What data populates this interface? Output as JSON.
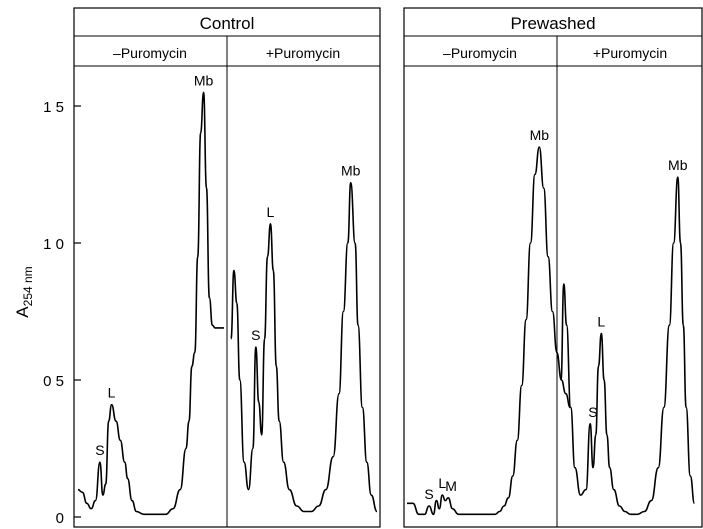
{
  "chart_data": {
    "type": "line",
    "ylabel": "A",
    "ylabel_sub": "254 nm",
    "ylim": [
      0,
      1.7
    ],
    "yticks": [
      {
        "value": 0,
        "label": "0"
      },
      {
        "value": 0.5,
        "label": "0 5"
      },
      {
        "value": 1.0,
        "label": "1 0"
      },
      {
        "value": 1.5,
        "label": "1 5"
      }
    ],
    "grid": false,
    "panels": [
      {
        "title": "Control",
        "subpanels": [
          {
            "label": "–Puromycin",
            "series": [
              {
                "x": [
                  0,
                  0.03,
                  0.06,
                  0.09,
                  0.12,
                  0.15,
                  0.17,
                  0.19,
                  0.21,
                  0.23,
                  0.26,
                  0.29,
                  0.32,
                  0.34,
                  0.37,
                  0.4,
                  0.45,
                  0.5,
                  0.55,
                  0.6,
                  0.65,
                  0.7,
                  0.74,
                  0.76,
                  0.78,
                  0.8,
                  0.82,
                  0.84,
                  0.86,
                  0.88,
                  0.9,
                  0.92,
                  0.94,
                  0.96,
                  1.0
                ],
                "y": [
                  0.1,
                  0.09,
                  0.05,
                  0.03,
                  0.06,
                  0.2,
                  0.08,
                  0.12,
                  0.35,
                  0.41,
                  0.35,
                  0.28,
                  0.2,
                  0.14,
                  0.06,
                  0.02,
                  0.01,
                  0.01,
                  0.01,
                  0.01,
                  0.03,
                  0.1,
                  0.25,
                  0.35,
                  0.55,
                  0.6,
                  0.95,
                  1.4,
                  1.55,
                  1.2,
                  0.8,
                  0.7,
                  0.69,
                  0.69,
                  0.69
                ]
              }
            ],
            "annotations": [
              {
                "text": "S",
                "x": 0.15,
                "y": 0.2
              },
              {
                "text": "L",
                "x": 0.23,
                "y": 0.41
              },
              {
                "text": "Mb",
                "x": 0.86,
                "y": 1.55
              }
            ]
          },
          {
            "label": "+Puromycin",
            "series": [
              {
                "x": [
                  0,
                  0.02,
                  0.04,
                  0.06,
                  0.09,
                  0.12,
                  0.15,
                  0.17,
                  0.19,
                  0.21,
                  0.23,
                  0.25,
                  0.27,
                  0.29,
                  0.31,
                  0.33,
                  0.36,
                  0.4,
                  0.45,
                  0.5,
                  0.55,
                  0.6,
                  0.65,
                  0.7,
                  0.74,
                  0.77,
                  0.8,
                  0.82,
                  0.85,
                  0.87,
                  0.9,
                  0.93,
                  0.96,
                  1.0
                ],
                "y": [
                  0.65,
                  0.9,
                  0.78,
                  0.5,
                  0.2,
                  0.1,
                  0.25,
                  0.62,
                  0.42,
                  0.3,
                  0.65,
                  0.95,
                  1.07,
                  0.9,
                  0.55,
                  0.35,
                  0.2,
                  0.1,
                  0.04,
                  0.02,
                  0.02,
                  0.04,
                  0.1,
                  0.22,
                  0.45,
                  0.75,
                  1.0,
                  1.22,
                  1.0,
                  0.7,
                  0.4,
                  0.2,
                  0.08,
                  0.02
                ]
              }
            ],
            "annotations": [
              {
                "text": "S",
                "x": 0.17,
                "y": 0.62
              },
              {
                "text": "L",
                "x": 0.27,
                "y": 1.07
              },
              {
                "text": "Mb",
                "x": 0.82,
                "y": 1.22
              }
            ]
          }
        ]
      },
      {
        "title": "Prewashed",
        "subpanels": [
          {
            "label": "–Puromycin",
            "series": [
              {
                "x": [
                  0,
                  0.04,
                  0.08,
                  0.12,
                  0.15,
                  0.18,
                  0.2,
                  0.22,
                  0.24,
                  0.26,
                  0.28,
                  0.31,
                  0.35,
                  0.4,
                  0.45,
                  0.5,
                  0.55,
                  0.6,
                  0.63,
                  0.66,
                  0.69,
                  0.72,
                  0.75,
                  0.78,
                  0.81,
                  0.84,
                  0.87,
                  0.9,
                  0.93,
                  0.96,
                  0.99,
                  1.02,
                  1.05,
                  1.08,
                  1.11
                ],
                "y": [
                  0.05,
                  0.05,
                  0.01,
                  0.01,
                  0.04,
                  0.01,
                  0.06,
                  0.03,
                  0.08,
                  0.06,
                  0.07,
                  0.03,
                  0.01,
                  0.01,
                  0.01,
                  0.01,
                  0.01,
                  0.01,
                  0.02,
                  0.04,
                  0.07,
                  0.15,
                  0.28,
                  0.48,
                  0.72,
                  1.0,
                  1.25,
                  1.35,
                  1.2,
                  0.95,
                  0.75,
                  0.6,
                  0.5,
                  0.45,
                  0.4
                ]
              }
            ],
            "annotations": [
              {
                "text": "S",
                "x": 0.15,
                "y": 0.04
              },
              {
                "text": "L",
                "x": 0.24,
                "y": 0.08
              },
              {
                "text": "M",
                "x": 0.3,
                "y": 0.07
              },
              {
                "text": "Mb",
                "x": 0.9,
                "y": 1.35
              }
            ]
          },
          {
            "label": "+Puromycin",
            "series": [
              {
                "x": [
                  0,
                  0.02,
                  0.04,
                  0.07,
                  0.1,
                  0.14,
                  0.18,
                  0.21,
                  0.23,
                  0.25,
                  0.27,
                  0.29,
                  0.31,
                  0.33,
                  0.35,
                  0.38,
                  0.42,
                  0.46,
                  0.5,
                  0.55,
                  0.6,
                  0.65,
                  0.7,
                  0.74,
                  0.78,
                  0.81,
                  0.84,
                  0.86,
                  0.88,
                  0.9,
                  0.93,
                  0.96
                ],
                "y": [
                  0.5,
                  0.85,
                  0.7,
                  0.4,
                  0.18,
                  0.08,
                  0.1,
                  0.34,
                  0.18,
                  0.3,
                  0.55,
                  0.67,
                  0.5,
                  0.3,
                  0.18,
                  0.1,
                  0.04,
                  0.02,
                  0.01,
                  0.01,
                  0.02,
                  0.06,
                  0.18,
                  0.4,
                  0.7,
                  1.0,
                  1.24,
                  1.0,
                  0.7,
                  0.4,
                  0.15,
                  0.05
                ]
              }
            ],
            "annotations": [
              {
                "text": "S",
                "x": 0.23,
                "y": 0.34
              },
              {
                "text": "L",
                "x": 0.29,
                "y": 0.67
              },
              {
                "text": "Mb",
                "x": 0.84,
                "y": 1.24
              }
            ]
          }
        ]
      }
    ]
  }
}
